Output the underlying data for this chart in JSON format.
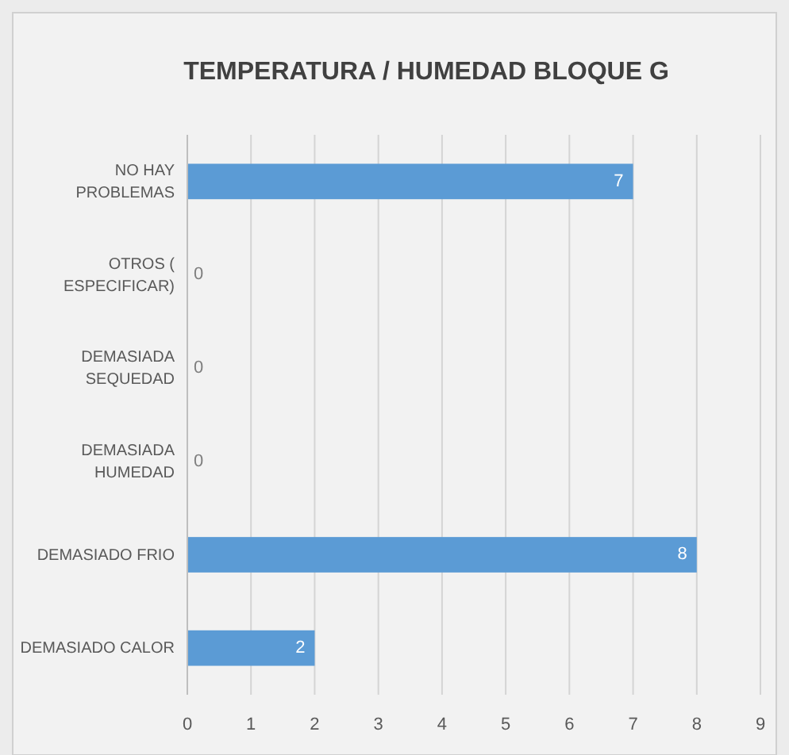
{
  "chart_data": {
    "type": "bar",
    "orientation": "horizontal",
    "title": "TEMPERATURA  / HUMEDAD BLOQUE G",
    "categories": [
      "NO HAY PROBLEMAS",
      "OTROS ( ESPECIFICAR)",
      "DEMASIADA SEQUEDAD",
      "DEMASIADA HUMEDAD",
      "DEMASIADO FRIO",
      "DEMASIADO CALOR"
    ],
    "values": [
      7,
      0,
      0,
      0,
      8,
      2
    ],
    "color": "#5b9bd5",
    "xlim": [
      0,
      9
    ],
    "xticks": [
      0,
      1,
      2,
      3,
      4,
      5,
      6,
      7,
      8,
      9
    ],
    "grid": "x",
    "data_labels": true
  }
}
